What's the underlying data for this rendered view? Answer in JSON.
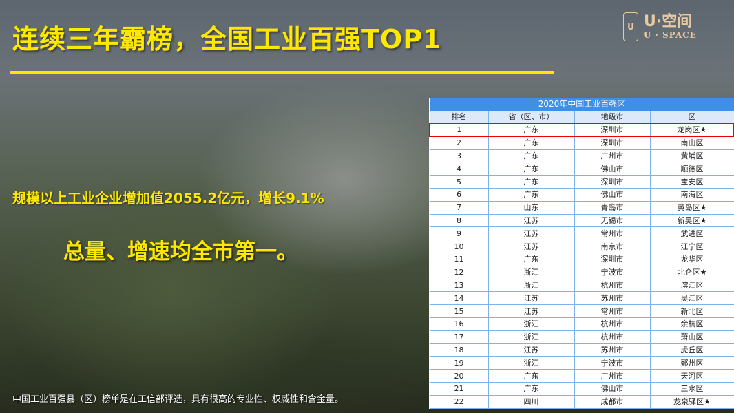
{
  "title": "连续三年霸榜，全国工业百强TOP1",
  "logo": {
    "mark": "U",
    "cn": "U·空间",
    "en": "U · SPACE"
  },
  "stat": "规模以上工业企业增加值2055.2亿元，增长9.1%",
  "highlight": "总量、增速均全市第一。",
  "footnote": "中国工业百强县（区）榜单是在工信部评选，具有很高的专业性、权威性和含金量。",
  "table": {
    "caption": "2020年中国工业百强区",
    "headers": [
      "排名",
      "省（区、市）",
      "地级市",
      "区"
    ],
    "rows": [
      [
        "1",
        "广东",
        "深圳市",
        "龙岗区★"
      ],
      [
        "2",
        "广东",
        "深圳市",
        "南山区"
      ],
      [
        "3",
        "广东",
        "广州市",
        "黄埔区"
      ],
      [
        "4",
        "广东",
        "佛山市",
        "顺德区"
      ],
      [
        "5",
        "广东",
        "深圳市",
        "宝安区"
      ],
      [
        "6",
        "广东",
        "佛山市",
        "南海区"
      ],
      [
        "7",
        "山东",
        "青岛市",
        "黄岛区★"
      ],
      [
        "8",
        "江苏",
        "无锡市",
        "新吴区★"
      ],
      [
        "9",
        "江苏",
        "常州市",
        "武进区"
      ],
      [
        "10",
        "江苏",
        "南京市",
        "江宁区"
      ],
      [
        "11",
        "广东",
        "深圳市",
        "龙华区"
      ],
      [
        "12",
        "浙江",
        "宁波市",
        "北仑区★"
      ],
      [
        "13",
        "浙江",
        "杭州市",
        "滨江区"
      ],
      [
        "14",
        "江苏",
        "苏州市",
        "吴江区"
      ],
      [
        "15",
        "江苏",
        "常州市",
        "新北区"
      ],
      [
        "16",
        "浙江",
        "杭州市",
        "余杭区"
      ],
      [
        "17",
        "浙江",
        "杭州市",
        "萧山区"
      ],
      [
        "18",
        "江苏",
        "苏州市",
        "虎丘区"
      ],
      [
        "19",
        "浙江",
        "宁波市",
        "鄞州区"
      ],
      [
        "20",
        "广东",
        "广州市",
        "天河区"
      ],
      [
        "21",
        "广东",
        "佛山市",
        "三水区"
      ],
      [
        "22",
        "四川",
        "成都市",
        "龙泉驿区★"
      ]
    ],
    "highlighted_rank": "1"
  },
  "colors": {
    "accent": "#ffe800",
    "table_header": "#3d8fe8",
    "highlight_border": "#e00000"
  }
}
